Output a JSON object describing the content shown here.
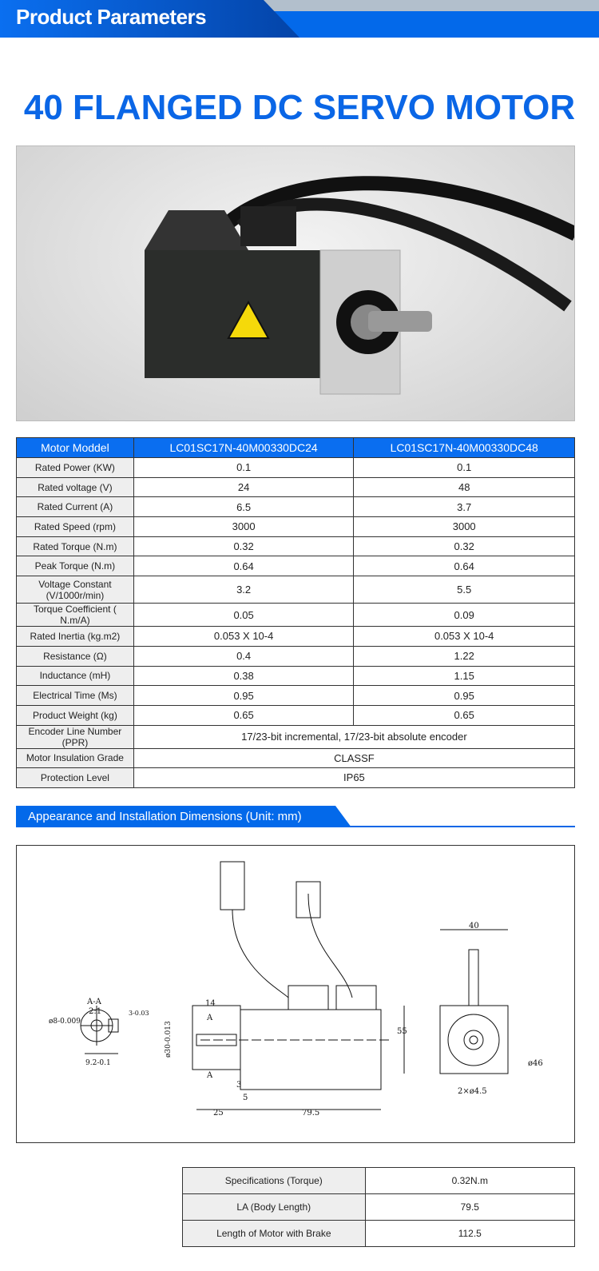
{
  "header": {
    "title": "Product Parameters"
  },
  "product_title": "40 FLANGED DC SERVO MOTOR",
  "spec_table": {
    "header": [
      "Motor Moddel",
      "LC01SC17N-40M00330DC24",
      "LC01SC17N-40M00330DC48"
    ],
    "rows": [
      [
        "Rated Power (KW)",
        "0.1",
        "0.1"
      ],
      [
        "Rated voltage (V)",
        "24",
        "48"
      ],
      [
        "Rated Current (A)",
        "6.5",
        "3.7"
      ],
      [
        "Rated Speed (rpm)",
        "3000",
        "3000"
      ],
      [
        "Rated Torque (N.m)",
        "0.32",
        "0.32"
      ],
      [
        "Peak Torque (N.m)",
        "0.64",
        "0.64"
      ],
      [
        "Voltage Constant (V/1000r/min)",
        "3.2",
        "5.5"
      ],
      [
        "Torque Coefficient ( N.m/A)",
        "0.05",
        "0.09"
      ],
      [
        "Rated Inertia (kg.m2)",
        "0.053 X 10-4",
        "0.053 X 10-4"
      ],
      [
        "Resistance (Ω)",
        "0.4",
        "1.22"
      ],
      [
        "Inductance (mH)",
        "0.38",
        "1.15"
      ],
      [
        "Electrical Time (Ms)",
        "0.95",
        "0.95"
      ],
      [
        "Product Weight (kg)",
        "0.65",
        "0.65"
      ]
    ],
    "merged_rows": [
      [
        "Encoder Line Number (PPR)",
        "17/23-bit incremental, 17/23-bit absolute encoder"
      ],
      [
        "Motor Insulation Grade",
        "CLASSF"
      ],
      [
        "Protection Level",
        "IP65"
      ]
    ]
  },
  "dimensions": {
    "title": "Appearance and Installation Dimensions (Unit: mm)",
    "labels": {
      "section": "A-A",
      "scale": "2:1",
      "shaft_d": "ø8-0.009",
      "key_h": "3-0.03",
      "key_w": "9.2-0.1",
      "flange_d": "ø30-0.013",
      "l14": "14",
      "a": "A",
      "l3": "3",
      "l5": "5",
      "l25": "25",
      "l795": "79.5",
      "w40": "40",
      "h55": "55",
      "d46": "ø46",
      "holes": "2×ø4.5"
    }
  },
  "bottom_table": {
    "rows": [
      [
        "Specifications (Torque)",
        "0.32N.m"
      ],
      [
        "LA (Body Length)",
        "79.5"
      ],
      [
        "Length of Motor with Brake",
        "112.5"
      ]
    ]
  }
}
